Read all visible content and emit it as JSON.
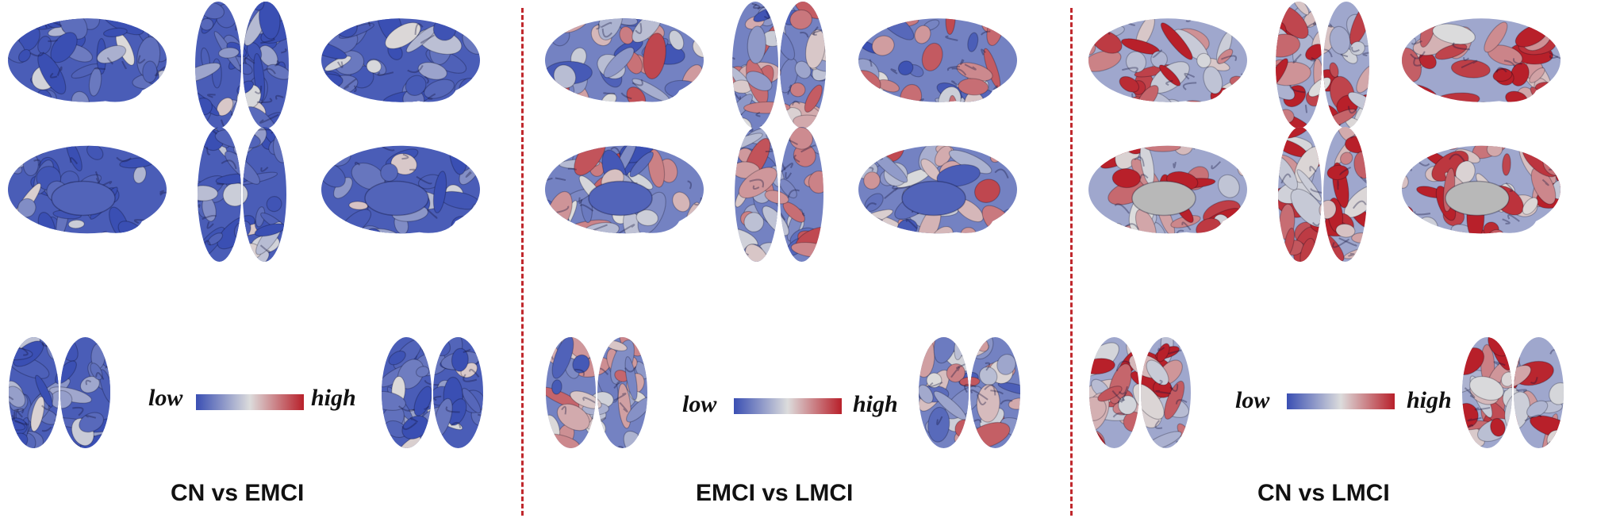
{
  "figure": {
    "legend": {
      "low_label": "low",
      "high_label": "high"
    },
    "colors": {
      "low": "#3a4fb3",
      "mid": "#dcdcdc",
      "high": "#b8202a"
    },
    "panels": [
      {
        "id": "cn-vs-emci",
        "caption": "CN vs EMCI",
        "tone": "blue"
      },
      {
        "id": "emci-vs-lmci",
        "caption": "EMCI vs LMCI",
        "tone": "mixed"
      },
      {
        "id": "cn-vs-lmci",
        "caption": "CN vs LMCI",
        "tone": "red"
      }
    ]
  }
}
